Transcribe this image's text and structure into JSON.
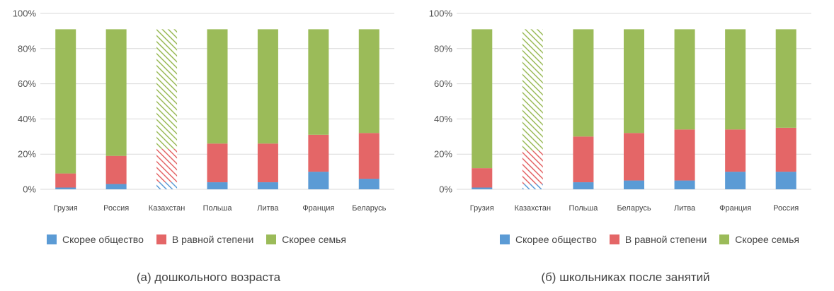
{
  "chart_data": [
    {
      "type": "bar",
      "stacked": true,
      "title": "",
      "caption": "(а) дошкольного возраста",
      "categories": [
        "Грузия",
        "Россия",
        "Казахстан",
        "Польша",
        "Литва",
        "Франция",
        "Беларусь"
      ],
      "series": [
        {
          "name": "Скорее общество",
          "color": "#5b9bd5",
          "values": [
            1,
            3,
            4,
            4,
            4,
            10,
            6
          ]
        },
        {
          "name": "В равной степени",
          "color": "#e46667",
          "values": [
            8,
            16,
            19,
            22,
            22,
            21,
            26
          ]
        },
        {
          "name": "Скорее семья",
          "color": "#9bbb59",
          "values": [
            82,
            72,
            68,
            65,
            65,
            60,
            59
          ]
        }
      ],
      "hatched_category": "Казахстан",
      "ylim": [
        0,
        100
      ],
      "yticks": [
        "0%",
        "20%",
        "40%",
        "60%",
        "80%",
        "100%"
      ],
      "grid": true,
      "legend_position": "bottom"
    },
    {
      "type": "bar",
      "stacked": true,
      "title": "",
      "caption": "(б) школьниках после занятий",
      "categories": [
        "Грузия",
        "Казахстан",
        "Польша",
        "Беларусь",
        "Литва",
        "Франция",
        "Россия"
      ],
      "series": [
        {
          "name": "Скорее общество",
          "color": "#5b9bd5",
          "values": [
            1,
            3,
            4,
            5,
            5,
            10,
            10
          ]
        },
        {
          "name": "В равной степени",
          "color": "#e46667",
          "values": [
            11,
            19,
            26,
            27,
            29,
            24,
            25
          ]
        },
        {
          "name": "Скорее семья",
          "color": "#9bbb59",
          "values": [
            79,
            69,
            61,
            59,
            57,
            57,
            56
          ]
        }
      ],
      "hatched_category": "Казахстан",
      "ylim": [
        0,
        100
      ],
      "yticks": [
        "0%",
        "20%",
        "40%",
        "60%",
        "80%",
        "100%"
      ],
      "grid": true,
      "legend_position": "bottom"
    }
  ]
}
